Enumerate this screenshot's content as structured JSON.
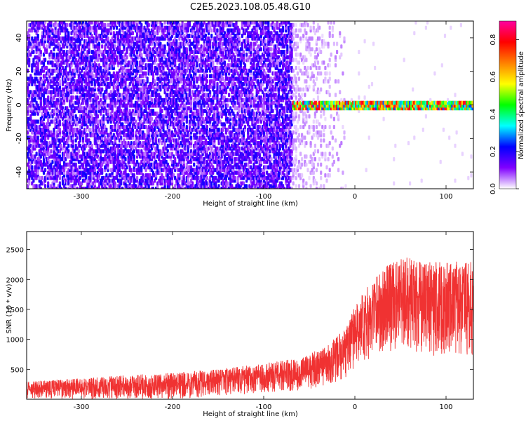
{
  "figure": {
    "title": "C2E5.2023.108.05.48.G10"
  },
  "chart_data": [
    {
      "type": "heatmap",
      "xlabel": "Height of straight line (km)",
      "ylabel": "Frequency (Hz)",
      "xlim": [
        -360,
        130
      ],
      "ylim": [
        -50,
        50
      ],
      "x_ticks": [
        -300,
        -200,
        -100,
        0,
        100
      ],
      "y_ticks": [
        -40,
        -20,
        0,
        20,
        40
      ],
      "colorbar": {
        "label": "Normalized spectral amplitude",
        "range": [
          0.0,
          0.9
        ],
        "ticks": [
          0.0,
          0.2,
          0.4,
          0.6,
          0.8
        ],
        "colors": [
          "#ffffff",
          "#8000ff",
          "#0000ff",
          "#00ffff",
          "#00ff00",
          "#ffff00",
          "#ff8000",
          "#ff0000",
          "#ff00a0"
        ]
      },
      "description_regions": [
        {
          "x_from": -360,
          "x_to": -70,
          "y_from": -50,
          "y_to": 50,
          "amplitude": [
            0.05,
            0.2
          ]
        },
        {
          "x_from": -70,
          "x_to": -10,
          "y_from": -50,
          "y_to": 50,
          "amplitude": [
            0.0,
            0.05
          ]
        },
        {
          "x_from": -70,
          "x_to": 130,
          "y_from": -2,
          "y_to": 2,
          "amplitude": [
            0.3,
            0.85
          ]
        }
      ]
    },
    {
      "type": "line",
      "xlabel": "Height of straight line (km)",
      "ylabel": "SNR (10 * v/v)",
      "xlim": [
        -360,
        130
      ],
      "ylim": [
        0,
        2800
      ],
      "x_ticks": [
        -300,
        -200,
        -100,
        0,
        100
      ],
      "y_ticks": [
        500,
        1000,
        1500,
        2000,
        2500
      ],
      "series": [
        {
          "color": "#f03232",
          "envelope_x": [
            -360,
            -300,
            -250,
            -200,
            -150,
            -100,
            -60,
            -30,
            -10,
            0,
            20,
            40,
            60,
            80,
            100,
            130
          ],
          "envelope_low": [
            0,
            0,
            0,
            0,
            50,
            100,
            150,
            200,
            350,
            500,
            700,
            800,
            800,
            700,
            700,
            700
          ],
          "envelope_high": [
            300,
            350,
            400,
            450,
            500,
            600,
            700,
            900,
            1200,
            1600,
            2000,
            2300,
            2400,
            2300,
            2300,
            2300
          ]
        }
      ]
    }
  ]
}
